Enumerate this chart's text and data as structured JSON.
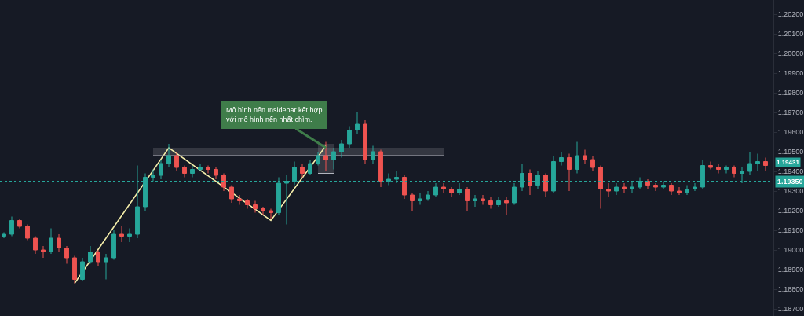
{
  "chart_data": {
    "type": "candlestick",
    "categories": [
      null,
      null,
      null,
      null,
      null,
      null,
      null,
      null,
      null,
      null,
      null,
      null,
      null,
      null,
      null,
      null,
      null,
      null,
      null,
      null,
      null,
      null,
      null,
      null,
      null,
      null,
      null,
      null,
      null,
      null,
      null,
      null,
      null,
      null,
      null,
      null,
      null,
      null,
      null,
      null,
      null,
      null,
      null,
      null,
      null,
      null,
      null,
      null,
      null,
      null,
      null,
      null,
      null,
      null,
      null,
      null,
      null,
      null,
      null,
      null,
      null,
      null,
      null,
      null,
      null,
      null,
      null,
      null,
      null,
      null,
      null,
      null,
      null,
      null,
      null,
      null,
      null,
      null,
      null,
      null,
      null,
      null,
      null,
      null,
      null,
      null,
      null,
      null,
      null,
      null,
      null,
      null,
      null,
      null,
      null,
      null,
      null,
      null
    ],
    "ohlc": [
      [
        1.1907,
        1.1909,
        1.1906,
        1.1908
      ],
      [
        1.1908,
        1.1917,
        1.1907,
        1.1915
      ],
      [
        1.1915,
        1.1916,
        1.1911,
        1.1912
      ],
      [
        1.1912,
        1.1913,
        1.1905,
        1.1906
      ],
      [
        1.1906,
        1.1907,
        1.1898,
        1.19
      ],
      [
        1.19,
        1.1902,
        1.1896,
        1.1899
      ],
      [
        1.1899,
        1.1911,
        1.1898,
        1.1906
      ],
      [
        1.1906,
        1.1908,
        1.1899,
        1.1901
      ],
      [
        1.1901,
        1.1902,
        1.1893,
        1.1896
      ],
      [
        1.1896,
        1.1897,
        1.1883,
        1.1885
      ],
      [
        1.1885,
        1.1896,
        1.1884,
        1.1894
      ],
      [
        1.1894,
        1.1902,
        1.1893,
        1.1899
      ],
      [
        1.1899,
        1.19,
        1.1892,
        1.1894
      ],
      [
        1.1894,
        1.1898,
        1.1885,
        1.1896
      ],
      [
        1.1896,
        1.191,
        1.1895,
        1.1908
      ],
      [
        1.1908,
        1.1912,
        1.1904,
        1.1907
      ],
      [
        1.1907,
        1.1911,
        1.1904,
        1.1908
      ],
      [
        1.1908,
        1.1943,
        1.1906,
        1.1922
      ],
      [
        1.1922,
        1.1939,
        1.192,
        1.1937
      ],
      [
        1.1937,
        1.1941,
        1.1935,
        1.1938
      ],
      [
        1.1938,
        1.1946,
        1.1936,
        1.1944
      ],
      [
        1.1944,
        1.1954,
        1.1942,
        1.1948
      ],
      [
        1.1948,
        1.195,
        1.194,
        1.1942
      ],
      [
        1.1942,
        1.1943,
        1.1937,
        1.1939
      ],
      [
        1.1939,
        1.1943,
        1.1937,
        1.1941
      ],
      [
        1.1941,
        1.1944,
        1.194,
        1.1942
      ],
      [
        1.1942,
        1.1943,
        1.1939,
        1.1941
      ],
      [
        1.1941,
        1.1942,
        1.1936,
        1.1938
      ],
      [
        1.1938,
        1.1939,
        1.193,
        1.1932
      ],
      [
        1.1932,
        1.1933,
        1.1924,
        1.1926
      ],
      [
        1.1926,
        1.1928,
        1.1923,
        1.1925
      ],
      [
        1.1925,
        1.1926,
        1.1921,
        1.1923
      ],
      [
        1.1923,
        1.1925,
        1.1919,
        1.1921
      ],
      [
        1.1921,
        1.1922,
        1.1918,
        1.192
      ],
      [
        1.192,
        1.1921,
        1.1916,
        1.1919
      ],
      [
        1.1919,
        1.1937,
        1.1918,
        1.1934
      ],
      [
        1.1934,
        1.1938,
        1.1913,
        1.1935
      ],
      [
        1.1935,
        1.1945,
        1.1933,
        1.1942
      ],
      [
        1.1942,
        1.1944,
        1.1937,
        1.1939
      ],
      [
        1.1939,
        1.1946,
        1.1938,
        1.1944
      ],
      [
        1.1944,
        1.195,
        1.1943,
        1.1948
      ],
      [
        1.1948,
        1.1955,
        1.194,
        1.1946
      ],
      [
        1.1946,
        1.1952,
        1.1941,
        1.195
      ],
      [
        1.195,
        1.1956,
        1.1947,
        1.1954
      ],
      [
        1.1954,
        1.1963,
        1.1952,
        1.1961
      ],
      [
        1.1961,
        1.197,
        1.1959,
        1.1964
      ],
      [
        1.1964,
        1.1966,
        1.1944,
        1.1946
      ],
      [
        1.1946,
        1.1953,
        1.1944,
        1.195
      ],
      [
        1.195,
        1.1951,
        1.1932,
        1.1935
      ],
      [
        1.1935,
        1.1939,
        1.1933,
        1.1936
      ],
      [
        1.1936,
        1.194,
        1.1934,
        1.1937
      ],
      [
        1.1937,
        1.1938,
        1.1926,
        1.1928
      ],
      [
        1.1928,
        1.1929,
        1.192,
        1.1925
      ],
      [
        1.1925,
        1.1929,
        1.1923,
        1.1926
      ],
      [
        1.1926,
        1.193,
        1.1925,
        1.1928
      ],
      [
        1.1928,
        1.1934,
        1.1927,
        1.1932
      ],
      [
        1.1932,
        1.1934,
        1.1929,
        1.1931
      ],
      [
        1.1931,
        1.1932,
        1.1927,
        1.1929
      ],
      [
        1.1929,
        1.1934,
        1.1928,
        1.1931
      ],
      [
        1.1931,
        1.1932,
        1.192,
        1.1925
      ],
      [
        1.1925,
        1.1928,
        1.1922,
        1.1926
      ],
      [
        1.1926,
        1.1928,
        1.1923,
        1.1925
      ],
      [
        1.1925,
        1.1927,
        1.1921,
        1.1923
      ],
      [
        1.1923,
        1.1927,
        1.1922,
        1.1925
      ],
      [
        1.1925,
        1.1927,
        1.1918,
        1.1924
      ],
      [
        1.1924,
        1.1934,
        1.1923,
        1.1932
      ],
      [
        1.1932,
        1.1944,
        1.193,
        1.1939
      ],
      [
        1.1939,
        1.1941,
        1.1928,
        1.1933
      ],
      [
        1.1933,
        1.194,
        1.1931,
        1.1938
      ],
      [
        1.1938,
        1.1939,
        1.1927,
        1.193
      ],
      [
        1.193,
        1.1948,
        1.1929,
        1.1945
      ],
      [
        1.1945,
        1.195,
        1.1943,
        1.1947
      ],
      [
        1.1947,
        1.1949,
        1.193,
        1.1941
      ],
      [
        1.1941,
        1.1955,
        1.1939,
        1.1948
      ],
      [
        1.1948,
        1.1951,
        1.1944,
        1.1946
      ],
      [
        1.1946,
        1.1948,
        1.194,
        1.1942
      ],
      [
        1.1942,
        1.1943,
        1.1921,
        1.1931
      ],
      [
        1.1931,
        1.1934,
        1.1927,
        1.193
      ],
      [
        1.193,
        1.1934,
        1.1928,
        1.1932
      ],
      [
        1.1932,
        1.1934,
        1.1929,
        1.1931
      ],
      [
        1.1931,
        1.1935,
        1.1929,
        1.1932
      ],
      [
        1.1932,
        1.1937,
        1.1931,
        1.1935
      ],
      [
        1.1935,
        1.1936,
        1.1931,
        1.1933
      ],
      [
        1.1933,
        1.1934,
        1.193,
        1.1932
      ],
      [
        1.1932,
        1.1935,
        1.1931,
        1.1933
      ],
      [
        1.1933,
        1.1934,
        1.1928,
        1.193
      ],
      [
        1.193,
        1.1932,
        1.1928,
        1.1929
      ],
      [
        1.1929,
        1.1933,
        1.1928,
        1.1931
      ],
      [
        1.1931,
        1.1934,
        1.193,
        1.1932
      ],
      [
        1.1932,
        1.1946,
        1.1931,
        1.1943
      ],
      [
        1.1943,
        1.1945,
        1.1941,
        1.1942
      ],
      [
        1.1942,
        1.1944,
        1.1939,
        1.1941
      ],
      [
        1.1941,
        1.1943,
        1.1939,
        1.1942
      ],
      [
        1.1942,
        1.1943,
        1.1937,
        1.1939
      ],
      [
        1.1939,
        1.1942,
        1.1934,
        1.194
      ],
      [
        1.194,
        1.195,
        1.1938,
        1.1944
      ],
      [
        1.1944,
        1.1949,
        1.194,
        1.1945
      ],
      [
        1.1945,
        1.1947,
        1.194,
        1.1943
      ]
    ],
    "colors": [
      "#26a69a",
      "#26a69a",
      "#ef5350",
      "#ef5350",
      "#ef5350",
      "#ef5350",
      "#26a69a",
      "#ef5350",
      "#ef5350",
      "#ef5350",
      "#26a69a",
      "#26a69a",
      "#ef5350",
      "#26a69a",
      "#26a69a",
      "#ef5350",
      "#26a69a",
      "#26a69a",
      "#26a69a",
      "#26a69a",
      "#26a69a",
      "#26a69a",
      "#ef5350",
      "#ef5350",
      "#26a69a",
      "#26a69a",
      "#ef5350",
      "#ef5350",
      "#ef5350",
      "#ef5350",
      "#ef5350",
      "#ef5350",
      "#ef5350",
      "#ef5350",
      "#ef5350",
      "#26a69a",
      "#26a69a",
      "#26a69a",
      "#ef5350",
      "#26a69a",
      "#26a69a",
      "#ef5350",
      "#26a69a",
      "#26a69a",
      "#26a69a",
      "#26a69a",
      "#ef5350",
      "#26a69a",
      "#ef5350",
      "#26a69a",
      "#26a69a",
      "#ef5350",
      "#ef5350",
      "#26a69a",
      "#26a69a",
      "#26a69a",
      "#ef5350",
      "#ef5350",
      "#26a69a",
      "#ef5350",
      "#26a69a",
      "#ef5350",
      "#ef5350",
      "#26a69a",
      "#ef5350",
      "#26a69a",
      "#26a69a",
      "#ef5350",
      "#26a69a",
      "#ef5350",
      "#26a69a",
      "#26a69a",
      "#ef5350",
      "#26a69a",
      "#ef5350",
      "#ef5350",
      "#ef5350",
      "#ef5350",
      "#26a69a",
      "#ef5350",
      "#26a69a",
      "#26a69a",
      "#ef5350",
      "#ef5350",
      "#26a69a",
      "#ef5350",
      "#ef5350",
      "#26a69a",
      "#26a69a",
      "#26a69a",
      "#ef5350",
      "#ef5350",
      "#26a69a",
      "#ef5350",
      "#26a69a",
      "#26a69a",
      "#26a69a",
      "#ef5350"
    ],
    "series": [
      {
        "type": "line",
        "color": "#f5eeaa",
        "line_style": "solid",
        "values": [
          null,
          null,
          null,
          null,
          null,
          null,
          null,
          null,
          null,
          1.1883,
          null,
          null,
          null,
          null,
          null,
          null,
          null,
          null,
          null,
          null,
          null,
          1.1952,
          null,
          null,
          null,
          null,
          null,
          null,
          null,
          null,
          null,
          null,
          null,
          null,
          1.1915,
          null,
          null,
          null,
          null,
          null,
          null,
          1.1953,
          null,
          null,
          null,
          null,
          null,
          null,
          null,
          null,
          null,
          null,
          null,
          null,
          null,
          null,
          null,
          null,
          null,
          null,
          null,
          null,
          null,
          null,
          null,
          null,
          null,
          null,
          null,
          null,
          null,
          null,
          null,
          null,
          null,
          null,
          null,
          null,
          null,
          null,
          null,
          null,
          null,
          null,
          null,
          null,
          null,
          null,
          null,
          null,
          null,
          null,
          null,
          null,
          null,
          null,
          null,
          null
        ]
      },
      {
        "type": "line",
        "color": "#b2b5be",
        "values": [
          null,
          null,
          null,
          null,
          null,
          null,
          null,
          null,
          null,
          null,
          null,
          null,
          null,
          null,
          null,
          null,
          null,
          null,
          null,
          1.1948,
          null,
          null,
          null,
          null,
          null,
          null,
          null,
          null,
          null,
          null,
          null,
          null,
          null,
          null,
          null,
          null,
          null,
          null,
          null,
          null,
          null,
          null,
          null,
          null,
          null,
          null,
          null,
          null,
          null,
          null,
          null,
          null,
          null,
          null,
          null,
          null,
          1.1948,
          null,
          null,
          null,
          null,
          null,
          null,
          null,
          null,
          null,
          null,
          null,
          null,
          null,
          null,
          null,
          null,
          null,
          null,
          null,
          null,
          null,
          null,
          null,
          null,
          null,
          null,
          null,
          null,
          null,
          null,
          null,
          null,
          null,
          null,
          null,
          null,
          null,
          null,
          null,
          null,
          null
        ],
        "lower": [
          null,
          null,
          null,
          null,
          null,
          null,
          null,
          null,
          null,
          null,
          null,
          null,
          null,
          null,
          null,
          null,
          null,
          null,
          null,
          1.1948,
          null,
          null,
          null,
          null,
          null,
          null,
          null,
          null,
          null,
          null,
          null,
          null,
          null,
          null,
          null,
          null,
          null,
          null,
          null,
          null,
          null,
          null,
          null,
          null,
          null,
          null,
          null,
          null,
          null,
          null,
          null,
          null,
          null,
          null,
          null,
          null,
          1.1948,
          null,
          null,
          null,
          null,
          null,
          null,
          null,
          null,
          null,
          null,
          null,
          null,
          null,
          null,
          null,
          null,
          null,
          null,
          null,
          null,
          null,
          null,
          null,
          null,
          null,
          null,
          null,
          null,
          null,
          null,
          null,
          null,
          null,
          null,
          null,
          null,
          null,
          null,
          null,
          null,
          null
        ],
        "upper": [
          null,
          null,
          null,
          null,
          null,
          null,
          null,
          null,
          null,
          null,
          null,
          null,
          null,
          null,
          null,
          null,
          null,
          null,
          null,
          1.1952,
          null,
          null,
          null,
          null,
          null,
          null,
          null,
          null,
          null,
          null,
          null,
          null,
          null,
          null,
          null,
          null,
          null,
          null,
          null,
          null,
          null,
          null,
          null,
          null,
          null,
          null,
          null,
          null,
          null,
          null,
          null,
          null,
          null,
          null,
          null,
          null,
          1.1952,
          null,
          null,
          null,
          null,
          null,
          null,
          null,
          null,
          null,
          null,
          null,
          null,
          null,
          null,
          null,
          null,
          null,
          null,
          null,
          null,
          null,
          null,
          null,
          null,
          null,
          null,
          null,
          null,
          null,
          null,
          null,
          null,
          null,
          null,
          null,
          null,
          null,
          null,
          null,
          null,
          null
        ]
      },
      {
        "type": "line",
        "color": "#b2b5be",
        "values": [
          null,
          null,
          null,
          null,
          null,
          null,
          null,
          null,
          null,
          null,
          null,
          null,
          null,
          null,
          null,
          null,
          null,
          null,
          null,
          null,
          null,
          null,
          null,
          null,
          null,
          null,
          null,
          null,
          null,
          null,
          null,
          null,
          null,
          null,
          null,
          null,
          null,
          null,
          null,
          null,
          1.1939,
          null,
          1.1939,
          null,
          null,
          null,
          null,
          null,
          null,
          null,
          null,
          null,
          null,
          null,
          null,
          null,
          null,
          null,
          null,
          null,
          null,
          null,
          null,
          null,
          null,
          null,
          null,
          null,
          null,
          null,
          null,
          null,
          null,
          null,
          null,
          null,
          null,
          null,
          null,
          null,
          null,
          null,
          null,
          null,
          null,
          null,
          null,
          null,
          null,
          null,
          null,
          null,
          null,
          null,
          null,
          null,
          null,
          null
        ],
        "lower": [
          null,
          null,
          null,
          null,
          null,
          null,
          null,
          null,
          null,
          null,
          null,
          null,
          null,
          null,
          null,
          null,
          null,
          null,
          null,
          null,
          null,
          null,
          null,
          null,
          null,
          null,
          null,
          null,
          null,
          null,
          null,
          null,
          null,
          null,
          null,
          null,
          null,
          null,
          null,
          null,
          1.1939,
          null,
          1.1939,
          null,
          null,
          null,
          null,
          null,
          null,
          null,
          null,
          null,
          null,
          null,
          null,
          null,
          null,
          null,
          null,
          null,
          null,
          null,
          null,
          null,
          null,
          null,
          null,
          null,
          null,
          null,
          null,
          null,
          null,
          null,
          null,
          null,
          null,
          null,
          null,
          null,
          null,
          null,
          null,
          null,
          null,
          null,
          null,
          null,
          null,
          null,
          null,
          null,
          null,
          null,
          null,
          null,
          null,
          null
        ],
        "upper": [
          null,
          null,
          null,
          null,
          null,
          null,
          null,
          null,
          null,
          null,
          null,
          null,
          null,
          null,
          null,
          null,
          null,
          null,
          null,
          null,
          null,
          null,
          null,
          null,
          null,
          null,
          null,
          null,
          null,
          null,
          null,
          null,
          null,
          null,
          null,
          null,
          null,
          null,
          null,
          null,
          1.1954,
          null,
          1.1954,
          null,
          null,
          null,
          null,
          null,
          null,
          null,
          null,
          null,
          null,
          null,
          null,
          null,
          null,
          null,
          null,
          null,
          null,
          null,
          null,
          null,
          null,
          null,
          null,
          null,
          null,
          null,
          null,
          null,
          null,
          null,
          null,
          null,
          null,
          null,
          null,
          null,
          null,
          null,
          null,
          null,
          null,
          null,
          null,
          null,
          null,
          null,
          null,
          null,
          null,
          null,
          null,
          null,
          null,
          null
        ]
      }
    ],
    "ylim": [
      1.18664,
      1.20272
    ],
    "yticks": [
      {
        "value": 1.187,
        "label": "1.18700"
      },
      {
        "value": 1.188,
        "label": "1.18800"
      },
      {
        "value": 1.189,
        "label": "1.18900"
      },
      {
        "value": 1.19,
        "label": "1.19000"
      },
      {
        "value": 1.191,
        "label": "1.19100"
      },
      {
        "value": 1.192,
        "label": "1.19200"
      },
      {
        "value": 1.193,
        "label": "1.19300"
      },
      {
        "value": 1.194,
        "label": "1.19400"
      },
      {
        "value": 1.195,
        "label": "1.19500"
      },
      {
        "value": 1.196,
        "label": "1.19600"
      },
      {
        "value": 1.197,
        "label": "1.19700"
      },
      {
        "value": 1.198,
        "label": "1.19800"
      },
      {
        "value": 1.199,
        "label": "1.19900"
      },
      {
        "value": 1.2,
        "label": "1.20000"
      },
      {
        "value": 1.201,
        "label": "1.20100"
      },
      {
        "value": 1.202,
        "label": "1.20200"
      }
    ],
    "tick_labels": "y",
    "ref_lines": [
      {
        "axis": "y",
        "value": 1.1935,
        "label": "1.19350",
        "color": "#26a69a",
        "line_style": "dotted"
      }
    ],
    "annotations": [
      "Mô hình nến Insidebar kết hợp\nvới mô hình nến nhất chìm.",
      "1.19431"
    ]
  }
}
